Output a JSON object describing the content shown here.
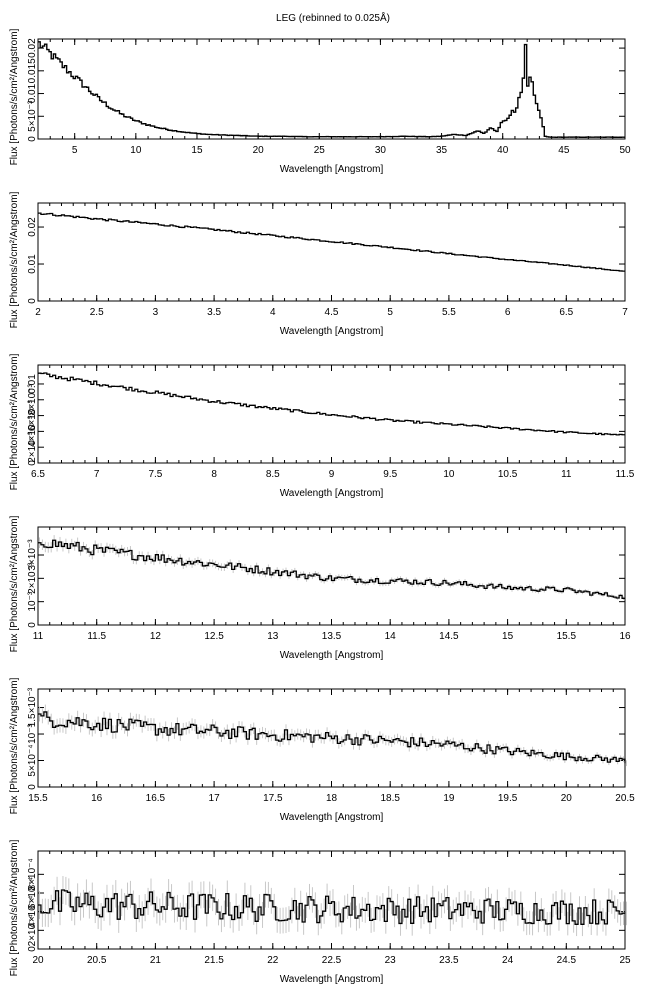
{
  "figure": {
    "title": "LEG (rebinned to 0.025Å)"
  },
  "chart_data": [
    {
      "type": "line",
      "style": "step",
      "xlabel": "Wavelength [Angstrom]",
      "ylabel": "Flux [Photons/s/cm²/Angstrom]",
      "xlim": [
        2,
        50
      ],
      "ylim": [
        0,
        0.022
      ],
      "xticks": [
        "5",
        "10",
        "15",
        "20",
        "25",
        "30",
        "35",
        "40",
        "45",
        "50"
      ],
      "yticks": [
        "0",
        "5×10⁻³",
        "0.01",
        "0.015",
        "0.02"
      ],
      "series": [
        {
          "x": [
            2,
            3,
            4,
            5,
            6,
            7,
            8,
            9,
            10,
            11,
            12,
            13,
            14,
            15,
            16,
            17,
            18,
            19,
            20,
            22,
            24,
            26,
            28,
            30,
            32,
            34,
            35,
            36,
            37,
            38,
            38.5,
            39,
            39.5,
            40,
            40.4,
            40.8,
            41,
            41.3,
            41.6,
            41.9,
            42.1,
            42.3,
            42.5,
            42.7,
            43,
            43.5,
            44,
            45,
            46,
            47,
            48,
            49,
            50
          ],
          "y": [
            0.0212,
            0.0188,
            0.0162,
            0.0137,
            0.0112,
            0.0088,
            0.0068,
            0.0052,
            0.004,
            0.0031,
            0.0024,
            0.0019,
            0.0015,
            0.0012,
            0.001,
            0.0009,
            0.0008,
            0.0007,
            0.0006,
            0.0006,
            0.0005,
            0.0005,
            0.0005,
            0.0005,
            0.0006,
            0.0005,
            0.0006,
            0.001,
            0.0008,
            0.0018,
            0.0012,
            0.0025,
            0.0015,
            0.004,
            0.0045,
            0.006,
            0.0055,
            0.009,
            0.011,
            0.0208,
            0.009,
            0.015,
            0.01,
            0.008,
            0.006,
            0.0005,
            0.0004,
            0.0004,
            0.0004,
            0.0004,
            0.0004,
            0.0004,
            0.0004
          ]
        }
      ]
    },
    {
      "type": "line",
      "style": "step",
      "xlabel": "Wavelength [Angstrom]",
      "ylabel": "Flux [Photons/s/cm²/Angstrom]",
      "xlim": [
        2,
        7
      ],
      "ylim": [
        0,
        0.0265
      ],
      "xticks": [
        "2",
        "2.5",
        "3",
        "3.5",
        "4",
        "4.5",
        "5",
        "5.5",
        "6",
        "6.5",
        "7"
      ],
      "yticks": [
        "0",
        "0.01",
        "0.02"
      ],
      "series": [
        {
          "x": [
            2,
            2.5,
            3,
            3.5,
            4,
            4.5,
            5,
            5.5,
            6,
            6.5,
            7
          ],
          "y": [
            0.0238,
            0.0222,
            0.0208,
            0.0193,
            0.0177,
            0.0161,
            0.0145,
            0.0128,
            0.0112,
            0.0097,
            0.008
          ]
        }
      ]
    },
    {
      "type": "line",
      "style": "step",
      "xlabel": "Wavelength [Angstrom]",
      "ylabel": "Flux [Photons/s/cm²/Angstrom]",
      "xlim": [
        6.5,
        11.5
      ],
      "ylim": [
        0,
        0.0124
      ],
      "xticks": [
        "6.5",
        "7",
        "7.5",
        "8",
        "8.5",
        "9",
        "9.5",
        "10",
        "10.5",
        "11",
        "11.5"
      ],
      "yticks": [
        "0",
        "2×10⁻³",
        "4×10⁻³",
        "6×10⁻³",
        "8×10⁻³",
        "0.01"
      ],
      "series": [
        {
          "x": [
            6.5,
            7,
            7.5,
            8,
            8.5,
            9,
            9.5,
            10,
            10.5,
            11,
            11.5
          ],
          "y": [
            0.0113,
            0.0101,
            0.0089,
            0.0078,
            0.0069,
            0.0061,
            0.0054,
            0.0049,
            0.0044,
            0.0039,
            0.0035
          ]
        }
      ]
    },
    {
      "type": "line",
      "style": "step",
      "xlabel": "Wavelength [Angstrom]",
      "ylabel": "Flux [Photons/s/cm²/Angstrom]",
      "xlim": [
        11,
        16
      ],
      "ylim": [
        0,
        0.0042
      ],
      "xticks": [
        "11",
        "11.5",
        "12",
        "12.5",
        "13",
        "13.5",
        "14",
        "14.5",
        "15",
        "15.5",
        "16"
      ],
      "yticks": [
        "0",
        "10⁻³",
        "2×10⁻³",
        "3×10⁻³"
      ],
      "series": [
        {
          "x": [
            11,
            11.5,
            12,
            12.5,
            13,
            13.5,
            14,
            14.5,
            15,
            15.5,
            16
          ],
          "y": [
            0.0036,
            0.0032,
            0.0029,
            0.0026,
            0.0023,
            0.002,
            0.0019,
            0.0018,
            0.0016,
            0.0015,
            0.0012
          ]
        }
      ]
    },
    {
      "type": "line",
      "style": "step",
      "xlabel": "Wavelength [Angstrom]",
      "ylabel": "Flux [Photons/s/cm²/Angstrom]",
      "xlim": [
        15.5,
        20.5
      ],
      "ylim": [
        0,
        0.00185
      ],
      "xticks": [
        "15.5",
        "16",
        "16.5",
        "17",
        "17.5",
        "18",
        "18.5",
        "19",
        "19.5",
        "20",
        "20.5"
      ],
      "yticks": [
        "0",
        "5×10⁻⁴",
        "10⁻³",
        "1.5×10⁻³"
      ],
      "series": [
        {
          "x": [
            15.5,
            16,
            16.5,
            17,
            17.5,
            18,
            18.5,
            19,
            19.5,
            20,
            20.5
          ],
          "y": [
            0.0013,
            0.0012,
            0.0011,
            0.00105,
            0.00098,
            0.00093,
            0.00087,
            0.0008,
            0.00068,
            0.00058,
            0.0005
          ]
        }
      ]
    },
    {
      "type": "line",
      "style": "step",
      "xlabel": "Wavelength [Angstrom]",
      "ylabel": "Flux [Photons/s/cm²/Angstrom]",
      "xlim": [
        20,
        25
      ],
      "ylim": [
        0,
        0.00105
      ],
      "xticks": [
        "20",
        "20.5",
        "21",
        "21.5",
        "22",
        "22.5",
        "23",
        "23.5",
        "24",
        "24.5",
        "25"
      ],
      "yticks": [
        "0",
        "2×10⁻⁴",
        "4×10⁻⁴",
        "6×10⁻⁴",
        "8×10⁻⁴"
      ],
      "series": [
        {
          "x": [
            20,
            20.5,
            21,
            21.5,
            22,
            22.5,
            23,
            23.5,
            24,
            24.5,
            25
          ],
          "y": [
            0.00048,
            0.00047,
            0.00046,
            0.00045,
            0.00044,
            0.00043,
            0.00042,
            0.00042,
            0.00041,
            0.0004,
            0.0004
          ]
        }
      ]
    }
  ]
}
